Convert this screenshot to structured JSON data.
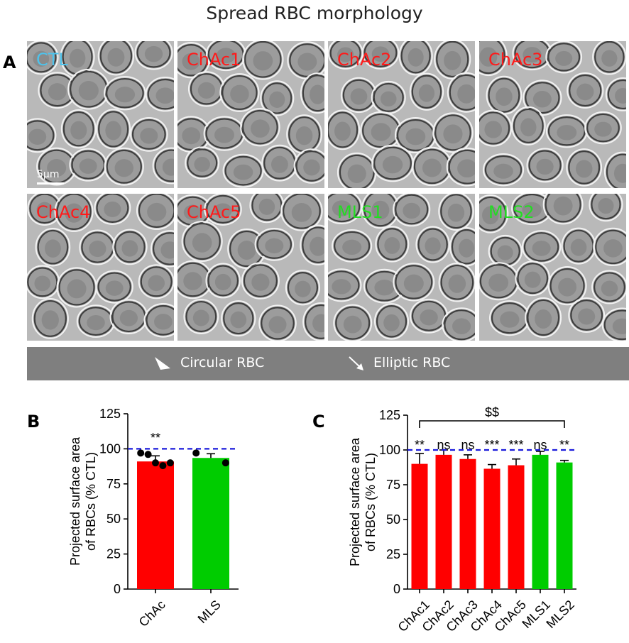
{
  "figure": {
    "title": "Spread RBC morphology",
    "panel_a": "A",
    "panel_b": "B",
    "panel_c": "C",
    "scale_bar": "5μm",
    "tiles": [
      {
        "label": "CTL",
        "color": "#4ec3ec"
      },
      {
        "label": "ChAc1",
        "color": "#ff1a1a"
      },
      {
        "label": "ChAc2",
        "color": "#ff1a1a"
      },
      {
        "label": "ChAc3",
        "color": "#ff1a1a"
      },
      {
        "label": "ChAc4",
        "color": "#ff1a1a"
      },
      {
        "label": "ChAc5",
        "color": "#ff1a1a"
      },
      {
        "label": "MLS1",
        "color": "#22dd22"
      },
      {
        "label": "MLS2",
        "color": "#22dd22"
      }
    ],
    "legend": {
      "circular_label": "Circular RBC",
      "elliptic_label": "Elliptic RBC",
      "background": "#7f7f7f"
    }
  },
  "chart_data": [
    {
      "type": "bar",
      "panel": "B",
      "categories": [
        "ChAc",
        "MLS"
      ],
      "values": [
        91,
        93.5
      ],
      "errors": [
        4,
        3
      ],
      "colors": [
        "#ff0000",
        "#00cc00"
      ],
      "points": [
        [
          97,
          96,
          90,
          88,
          90
        ],
        [
          97,
          90
        ]
      ],
      "significance": [
        "**",
        ""
      ],
      "ylabel": "Projected surface area of RBCs (% CTL)",
      "ylabel_lines": [
        "Projected surface area",
        "of RBCs (% CTL)"
      ],
      "yticks": [
        0,
        25,
        50,
        75,
        100,
        125
      ],
      "ylim": [
        0,
        125
      ],
      "reference_line": 100,
      "reference_color": "#1a1adb"
    },
    {
      "type": "bar",
      "panel": "C",
      "categories": [
        "ChAc1",
        "ChAc2",
        "ChAc3",
        "ChAc4",
        "ChAc5",
        "MLS1",
        "MLS2"
      ],
      "values": [
        90,
        96.5,
        93.5,
        86.5,
        89,
        96.5,
        91
      ],
      "errors": [
        7.5,
        3.5,
        3,
        3,
        4.5,
        2.5,
        1.5
      ],
      "colors": [
        "#ff0000",
        "#ff0000",
        "#ff0000",
        "#ff0000",
        "#ff0000",
        "#00cc00",
        "#00cc00"
      ],
      "significance": [
        "**",
        "ns",
        "ns",
        "***",
        "***",
        "ns",
        "**"
      ],
      "group_annotation": "$$",
      "ylabel": "Projected surface area of RBCs (% CTL)",
      "ylabel_lines": [
        "Projected surface area",
        "of RBCs (% CTL)"
      ],
      "yticks": [
        0,
        25,
        50,
        75,
        100,
        125
      ],
      "ylim": [
        0,
        125
      ],
      "reference_line": 100,
      "reference_color": "#1a1adb"
    }
  ]
}
